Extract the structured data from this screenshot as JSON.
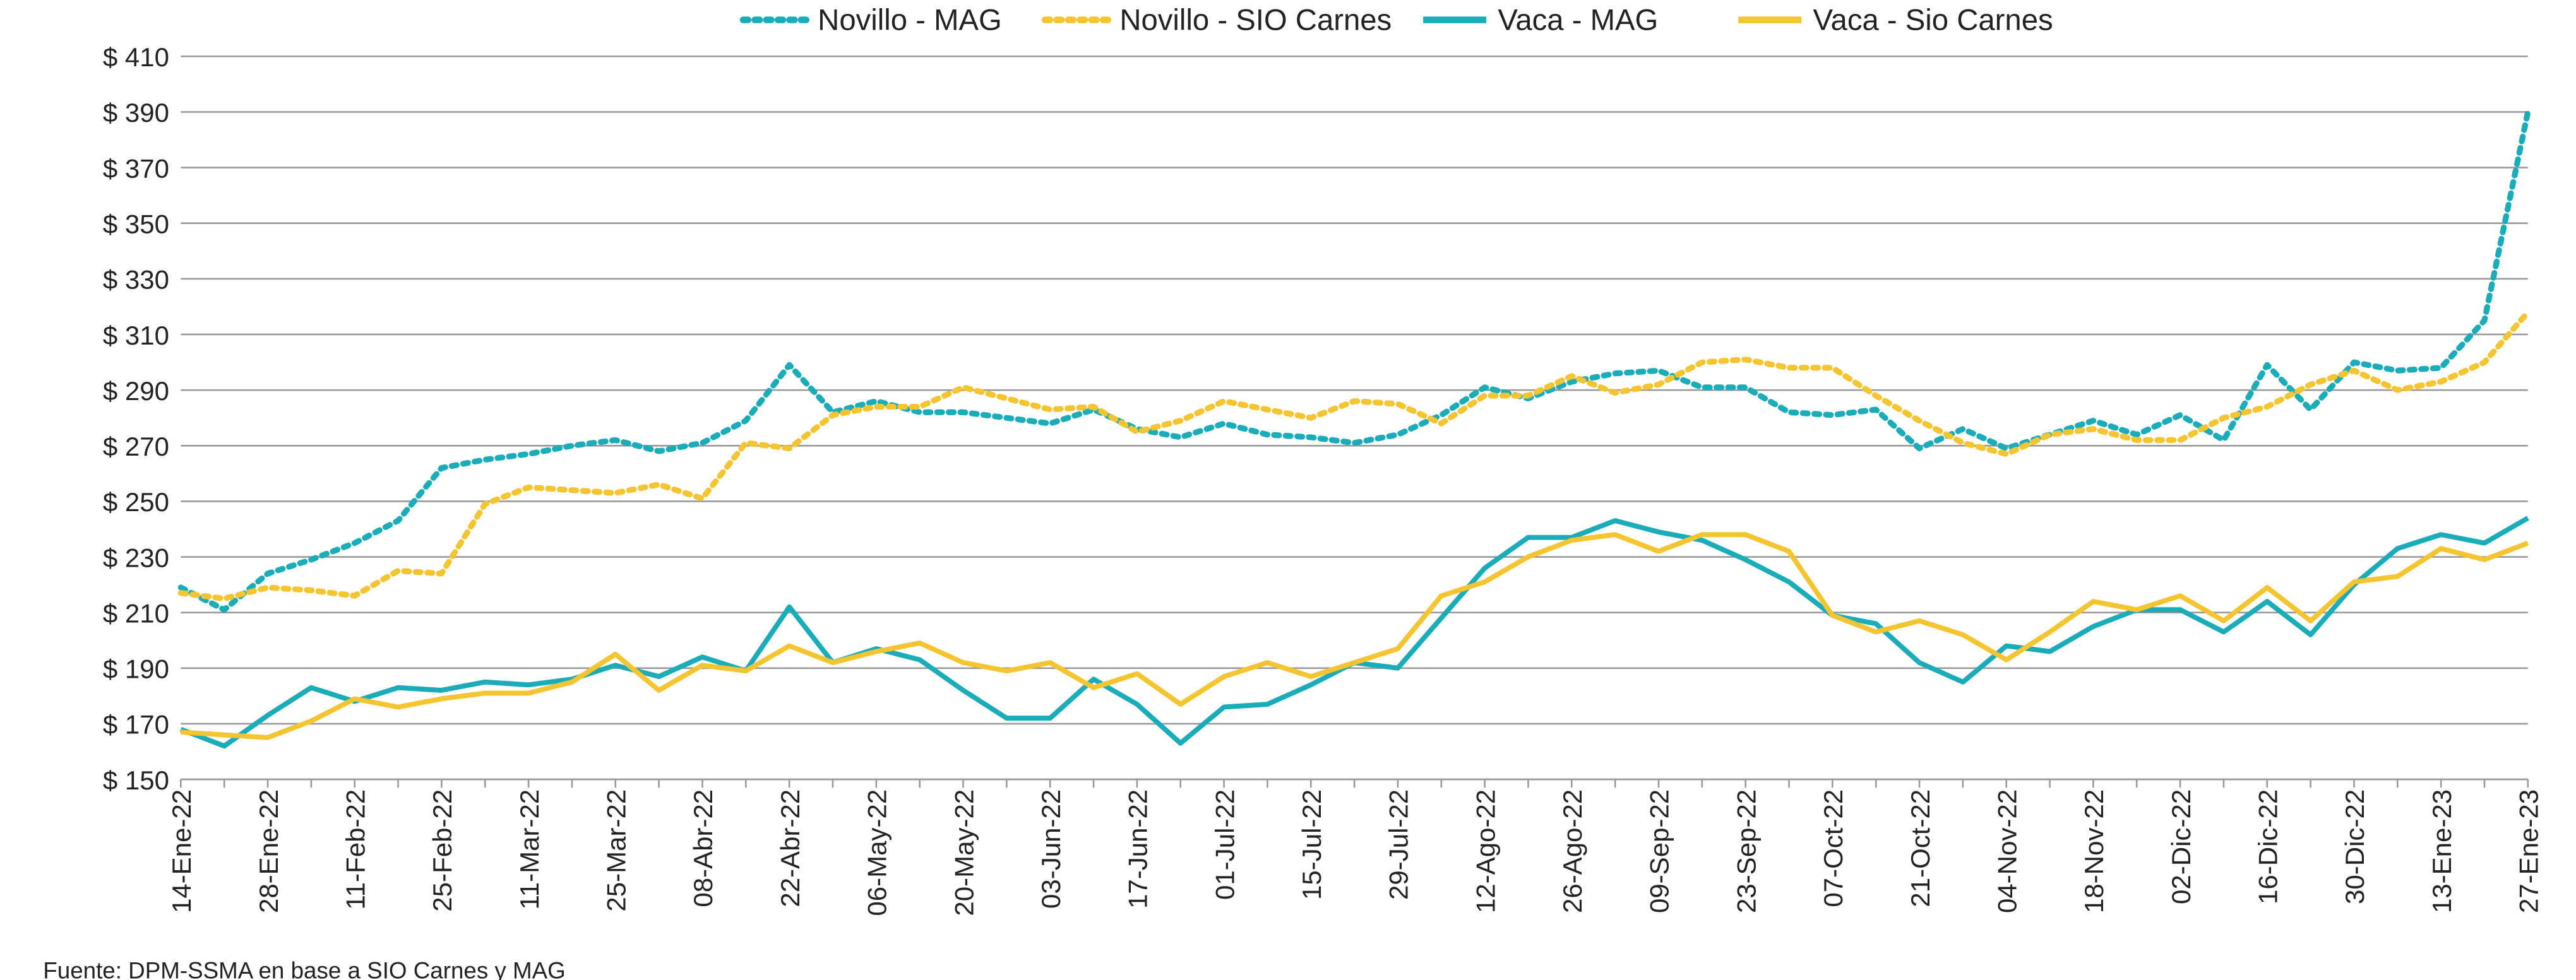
{
  "chart_data": {
    "type": "line",
    "source": "Fuente: DPM-SSMA en base a SIO Carnes y MAG",
    "categories": [
      "14-Ene-22",
      null,
      "28-Ene-22",
      null,
      "11-Feb-22",
      null,
      "25-Feb-22",
      null,
      "11-Mar-22",
      null,
      "25-Mar-22",
      null,
      "08-Abr-22",
      null,
      "22-Abr-22",
      null,
      "06-May-22",
      null,
      "20-May-22",
      null,
      "03-Jun-22",
      null,
      "17-Jun-22",
      null,
      "01-Jul-22",
      null,
      "15-Jul-22",
      null,
      "29-Jul-22",
      null,
      "12-Ago-22",
      null,
      "26-Ago-22",
      null,
      "09-Sep-22",
      null,
      "23-Sep-22",
      null,
      "07-Oct-22",
      null,
      "21-Oct-22",
      null,
      "04-Nov-22",
      null,
      "18-Nov-22",
      null,
      "02-Dic-22",
      null,
      "16-Dic-22",
      null,
      "30-Dic-22",
      null,
      "13-Ene-23",
      null,
      "27-Ene-23"
    ],
    "series": [
      {
        "name": "Novillo - MAG",
        "color": "#1aacb8",
        "style": "dotted",
        "values": [
          219,
          211,
          224,
          229,
          235,
          243,
          262,
          265,
          267,
          270,
          272,
          268,
          271,
          279,
          299,
          282,
          286,
          282,
          282,
          280,
          278,
          283,
          276,
          273,
          278,
          274,
          273,
          271,
          274,
          281,
          291,
          287,
          293,
          296,
          297,
          291,
          291,
          282,
          281,
          283,
          269,
          276,
          269,
          274,
          279,
          274,
          281,
          272,
          299,
          283,
          300,
          297,
          298,
          315,
          390
        ]
      },
      {
        "name": "Novillo - SIO Carnes",
        "color": "#f5c431",
        "style": "dotted",
        "values": [
          217,
          215,
          219,
          218,
          216,
          225,
          224,
          249,
          255,
          254,
          253,
          256,
          251,
          271,
          269,
          281,
          284,
          284,
          291,
          287,
          283,
          284,
          275,
          279,
          286,
          283,
          280,
          286,
          285,
          278,
          288,
          288,
          295,
          289,
          292,
          300,
          301,
          298,
          298,
          288,
          279,
          271,
          267,
          274,
          276,
          272,
          272,
          280,
          284,
          292,
          297,
          290,
          293,
          300,
          318
        ]
      },
      {
        "name": "Vaca - MAG",
        "color": "#1aacb8",
        "style": "solid",
        "values": [
          168,
          162,
          173,
          183,
          178,
          183,
          182,
          185,
          184,
          186,
          191,
          187,
          194,
          189,
          212,
          192,
          197,
          193,
          182,
          172,
          172,
          186,
          177,
          163,
          176,
          177,
          184,
          192,
          190,
          208,
          226,
          237,
          237,
          243,
          239,
          236,
          229,
          221,
          209,
          206,
          192,
          185,
          198,
          196,
          205,
          211,
          211,
          203,
          214,
          202,
          220,
          233,
          238,
          235,
          244
        ]
      },
      {
        "name": "Vaca - Sio Carnes",
        "color": "#f5c431",
        "style": "solid",
        "values": [
          167,
          166,
          165,
          171,
          179,
          176,
          179,
          181,
          181,
          185,
          195,
          182,
          191,
          189,
          198,
          192,
          196,
          199,
          192,
          189,
          192,
          183,
          188,
          177,
          187,
          192,
          187,
          192,
          197,
          216,
          221,
          230,
          236,
          238,
          232,
          238,
          238,
          232,
          209,
          203,
          207,
          202,
          193,
          203,
          214,
          211,
          216,
          207,
          219,
          207,
          221,
          223,
          233,
          229,
          235
        ]
      }
    ],
    "ylim": [
      150,
      410
    ],
    "yticks": [
      {
        "value": 150,
        "label": "$ 150"
      },
      {
        "value": 170,
        "label": "$ 170"
      },
      {
        "value": 190,
        "label": "$ 190"
      },
      {
        "value": 210,
        "label": "$ 210"
      },
      {
        "value": 230,
        "label": "$ 230"
      },
      {
        "value": 250,
        "label": "$ 250"
      },
      {
        "value": 270,
        "label": "$ 270"
      },
      {
        "value": 290,
        "label": "$ 290"
      },
      {
        "value": 310,
        "label": "$ 310"
      },
      {
        "value": 330,
        "label": "$ 330"
      },
      {
        "value": 350,
        "label": "$ 350"
      },
      {
        "value": 370,
        "label": "$ 370"
      },
      {
        "value": 390,
        "label": "$ 390"
      },
      {
        "value": 410,
        "label": "$ 410"
      }
    ],
    "grid": true,
    "legend": "top"
  }
}
